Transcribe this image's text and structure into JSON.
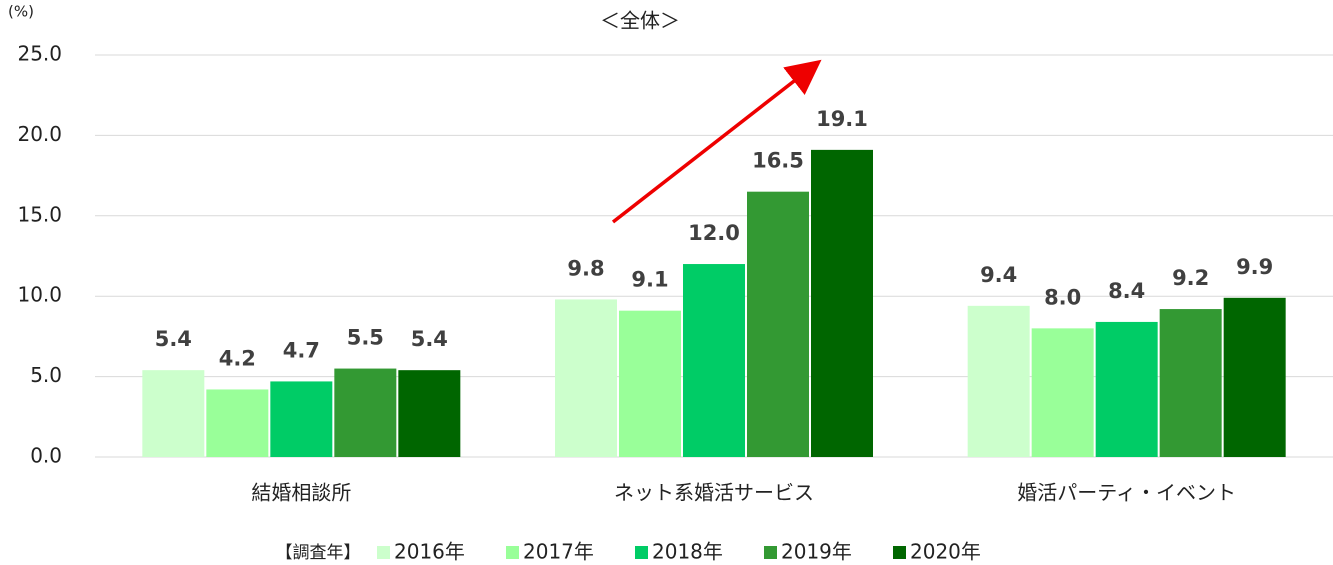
{
  "chart_data": {
    "type": "bar",
    "title": "＜全体＞",
    "y_unit": "(%)",
    "legend_title": "【調査年】",
    "categories": [
      "結婚相談所",
      "ネット系婚活サービス",
      "婚活パーティ・イベント"
    ],
    "series": [
      {
        "name": "2016年",
        "color": "#ccffcc",
        "values": [
          5.4,
          9.8,
          9.4
        ],
        "value_labels": [
          "5.4",
          "9.8",
          "9.4"
        ]
      },
      {
        "name": "2017年",
        "color": "#99ff99",
        "values": [
          4.2,
          9.1,
          8.0
        ],
        "value_labels": [
          "4.2",
          "9.1",
          "8.0"
        ]
      },
      {
        "name": "2018年",
        "color": "#00cc66",
        "values": [
          4.7,
          12.0,
          8.4
        ],
        "value_labels": [
          "4.7",
          "12.0",
          "8.4"
        ]
      },
      {
        "name": "2019年",
        "color": "#339933",
        "values": [
          5.5,
          16.5,
          9.2
        ],
        "value_labels": [
          "5.5",
          "16.5",
          "9.2"
        ]
      },
      {
        "name": "2020年",
        "color": "#006600",
        "values": [
          5.4,
          19.1,
          9.9
        ],
        "value_labels": [
          "5.4",
          "19.1",
          "9.9"
        ]
      }
    ],
    "ylim": [
      0,
      25
    ],
    "yticks": [
      {
        "value": 0,
        "label": "0.0"
      },
      {
        "value": 5,
        "label": "5.0"
      },
      {
        "value": 10,
        "label": "10.0"
      },
      {
        "value": 15,
        "label": "15.0"
      },
      {
        "value": 20,
        "label": "20.0"
      },
      {
        "value": 25,
        "label": "25.0"
      }
    ],
    "grid": true
  }
}
